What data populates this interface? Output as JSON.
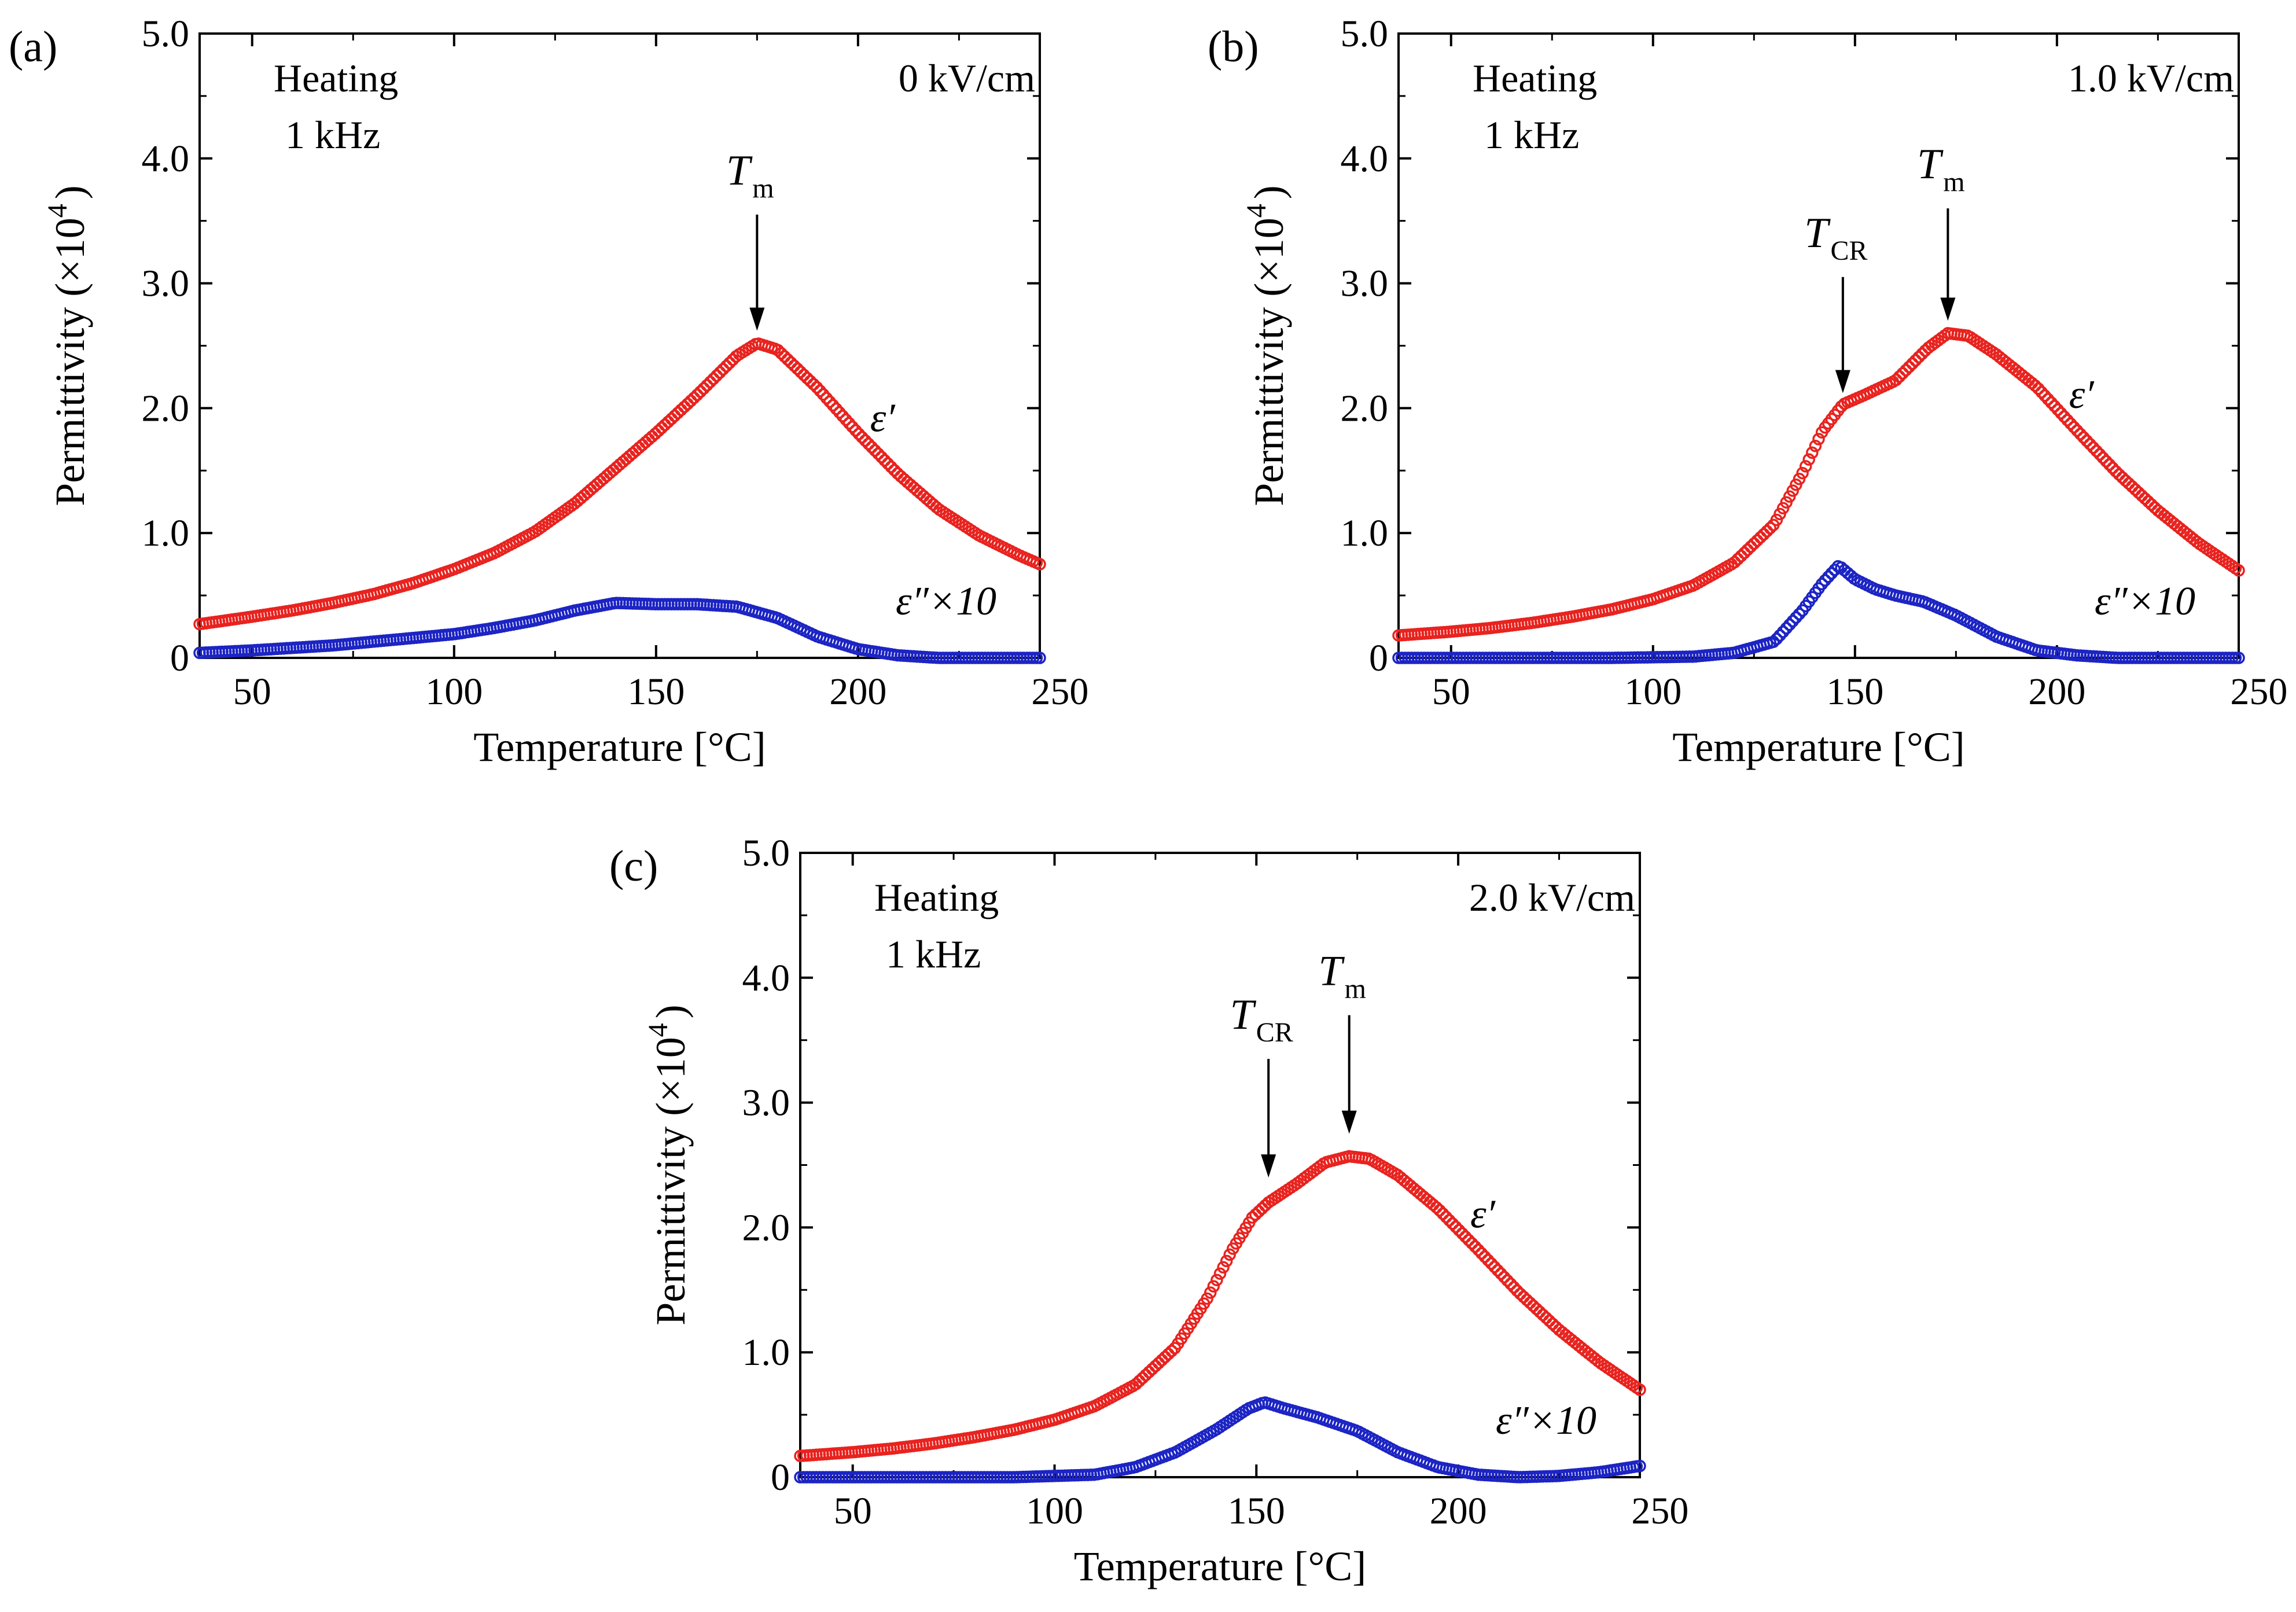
{
  "axes": {
    "xlabel": "Temperature [°C]",
    "ylabel": "Permittivity (×10",
    "ylabel_exp": "4",
    "ylabel_close": ")",
    "xlim": [
      37,
      245
    ],
    "ylim": [
      0,
      5.0
    ],
    "xticks": [
      50,
      100,
      150,
      200,
      250
    ],
    "yticks": [
      0,
      1.0,
      2.0,
      3.0,
      4.0,
      5.0
    ],
    "ytick_labels": [
      "0",
      "1.0",
      "2.0",
      "3.0",
      "4.0",
      "5.0"
    ],
    "xtick_labels": [
      "50",
      "100",
      "150",
      "200",
      "250"
    ]
  },
  "colors": {
    "eps_real": "#e8231f",
    "eps_imag": "#1c24c4"
  },
  "panels": [
    {
      "letter": "(a)",
      "mode": "Heating",
      "freq": "1 kHz",
      "field": "0 kV/cm",
      "real_label": "ε′",
      "imag_label": "ε″×10",
      "annotations": [
        {
          "main": "T",
          "sub": "m",
          "x": 175,
          "y_tip": 2.62,
          "y_top": 3.55
        }
      ]
    },
    {
      "letter": "(b)",
      "mode": "Heating",
      "freq": "1 kHz",
      "field": "1.0 kV/cm",
      "real_label": "ε′",
      "imag_label": "ε″×10",
      "annotations": [
        {
          "main": "T",
          "sub": "CR",
          "x": 147,
          "y_tip": 2.12,
          "y_top": 3.05
        },
        {
          "main": "T",
          "sub": "m",
          "x": 173,
          "y_tip": 2.7,
          "y_top": 3.6
        }
      ]
    },
    {
      "letter": "(c)",
      "mode": "Heating",
      "freq": "1 kHz",
      "field": "2.0 kV/cm",
      "real_label": "ε′",
      "imag_label": "ε″×10",
      "annotations": [
        {
          "main": "T",
          "sub": "CR",
          "x": 153,
          "y_tip": 2.4,
          "y_top": 3.35
        },
        {
          "main": "T",
          "sub": "m",
          "x": 173,
          "y_tip": 2.75,
          "y_top": 3.7
        }
      ]
    }
  ],
  "chart_data": [
    {
      "type": "scatter",
      "title": "",
      "xlabel": "Temperature [°C]",
      "ylabel": "Permittivity (×10^4)",
      "xlim": [
        37,
        245
      ],
      "ylim": [
        0,
        5.0
      ],
      "series": [
        {
          "name": "ε′",
          "color": "#e8231f",
          "marker": "open-circle",
          "points": [
            [
              37,
              0.27
            ],
            [
              50,
              0.33
            ],
            [
              60,
              0.38
            ],
            [
              70,
              0.44
            ],
            [
              80,
              0.51
            ],
            [
              90,
              0.6
            ],
            [
              100,
              0.71
            ],
            [
              110,
              0.84
            ],
            [
              120,
              1.01
            ],
            [
              130,
              1.24
            ],
            [
              140,
              1.52
            ],
            [
              150,
              1.8
            ],
            [
              160,
              2.1
            ],
            [
              170,
              2.42
            ],
            [
              175,
              2.52
            ],
            [
              180,
              2.47
            ],
            [
              190,
              2.16
            ],
            [
              200,
              1.8
            ],
            [
              210,
              1.47
            ],
            [
              220,
              1.19
            ],
            [
              230,
              0.98
            ],
            [
              240,
              0.82
            ],
            [
              245,
              0.75
            ]
          ]
        },
        {
          "name": "ε″×10",
          "color": "#1c24c4",
          "marker": "open-circle",
          "points": [
            [
              37,
              0.04
            ],
            [
              50,
              0.06
            ],
            [
              60,
              0.08
            ],
            [
              70,
              0.1
            ],
            [
              80,
              0.13
            ],
            [
              90,
              0.16
            ],
            [
              100,
              0.19
            ],
            [
              110,
              0.24
            ],
            [
              120,
              0.3
            ],
            [
              130,
              0.38
            ],
            [
              140,
              0.44
            ],
            [
              150,
              0.43
            ],
            [
              160,
              0.43
            ],
            [
              170,
              0.41
            ],
            [
              180,
              0.32
            ],
            [
              190,
              0.17
            ],
            [
              200,
              0.07
            ],
            [
              210,
              0.02
            ],
            [
              220,
              0.0
            ],
            [
              230,
              0.0
            ],
            [
              245,
              0.0
            ]
          ]
        }
      ]
    },
    {
      "type": "scatter",
      "title": "",
      "xlabel": "Temperature [°C]",
      "ylabel": "Permittivity (×10^4)",
      "xlim": [
        37,
        245
      ],
      "ylim": [
        0,
        5.0
      ],
      "series": [
        {
          "name": "ε′",
          "color": "#e8231f",
          "marker": "open-circle",
          "points": [
            [
              37,
              0.18
            ],
            [
              50,
              0.21
            ],
            [
              60,
              0.24
            ],
            [
              70,
              0.28
            ],
            [
              80,
              0.33
            ],
            [
              90,
              0.39
            ],
            [
              100,
              0.47
            ],
            [
              110,
              0.58
            ],
            [
              120,
              0.76
            ],
            [
              130,
              1.07
            ],
            [
              137,
              1.48
            ],
            [
              142,
              1.82
            ],
            [
              147,
              2.03
            ],
            [
              152,
              2.1
            ],
            [
              160,
              2.22
            ],
            [
              168,
              2.48
            ],
            [
              173,
              2.6
            ],
            [
              178,
              2.58
            ],
            [
              185,
              2.43
            ],
            [
              195,
              2.17
            ],
            [
              205,
              1.82
            ],
            [
              215,
              1.48
            ],
            [
              225,
              1.18
            ],
            [
              235,
              0.92
            ],
            [
              245,
              0.7
            ]
          ]
        },
        {
          "name": "ε″×10",
          "color": "#1c24c4",
          "marker": "open-circle",
          "points": [
            [
              37,
              0.0
            ],
            [
              50,
              0.0
            ],
            [
              70,
              0.0
            ],
            [
              90,
              0.0
            ],
            [
              110,
              0.01
            ],
            [
              120,
              0.04
            ],
            [
              130,
              0.13
            ],
            [
              137,
              0.38
            ],
            [
              142,
              0.6
            ],
            [
              146,
              0.74
            ],
            [
              150,
              0.63
            ],
            [
              155,
              0.55
            ],
            [
              160,
              0.5
            ],
            [
              167,
              0.45
            ],
            [
              175,
              0.34
            ],
            [
              185,
              0.17
            ],
            [
              195,
              0.06
            ],
            [
              205,
              0.02
            ],
            [
              215,
              0.0
            ],
            [
              230,
              0.0
            ],
            [
              245,
              0.0
            ]
          ]
        }
      ]
    },
    {
      "type": "scatter",
      "title": "",
      "xlabel": "Temperature [°C]",
      "ylabel": "Permittivity (×10^4)",
      "xlim": [
        37,
        245
      ],
      "ylim": [
        0,
        5.0
      ],
      "series": [
        {
          "name": "ε′",
          "color": "#e8231f",
          "marker": "open-circle",
          "points": [
            [
              37,
              0.17
            ],
            [
              50,
              0.2
            ],
            [
              60,
              0.23
            ],
            [
              70,
              0.27
            ],
            [
              80,
              0.32
            ],
            [
              90,
              0.38
            ],
            [
              100,
              0.46
            ],
            [
              110,
              0.57
            ],
            [
              120,
              0.74
            ],
            [
              130,
              1.04
            ],
            [
              138,
              1.44
            ],
            [
              144,
              1.82
            ],
            [
              149,
              2.08
            ],
            [
              153,
              2.2
            ],
            [
              160,
              2.35
            ],
            [
              167,
              2.52
            ],
            [
              173,
              2.57
            ],
            [
              178,
              2.55
            ],
            [
              185,
              2.42
            ],
            [
              195,
              2.15
            ],
            [
              205,
              1.82
            ],
            [
              215,
              1.48
            ],
            [
              225,
              1.18
            ],
            [
              235,
              0.92
            ],
            [
              245,
              0.7
            ]
          ]
        },
        {
          "name": "ε″×10",
          "color": "#1c24c4",
          "marker": "open-circle",
          "points": [
            [
              37,
              0.0
            ],
            [
              50,
              0.0
            ],
            [
              70,
              0.0
            ],
            [
              90,
              0.0
            ],
            [
              110,
              0.02
            ],
            [
              120,
              0.08
            ],
            [
              130,
              0.2
            ],
            [
              140,
              0.38
            ],
            [
              148,
              0.55
            ],
            [
              152,
              0.6
            ],
            [
              157,
              0.55
            ],
            [
              165,
              0.48
            ],
            [
              175,
              0.37
            ],
            [
              185,
              0.2
            ],
            [
              195,
              0.08
            ],
            [
              205,
              0.02
            ],
            [
              215,
              0.0
            ],
            [
              225,
              0.01
            ],
            [
              235,
              0.04
            ],
            [
              245,
              0.09
            ]
          ]
        }
      ]
    }
  ]
}
